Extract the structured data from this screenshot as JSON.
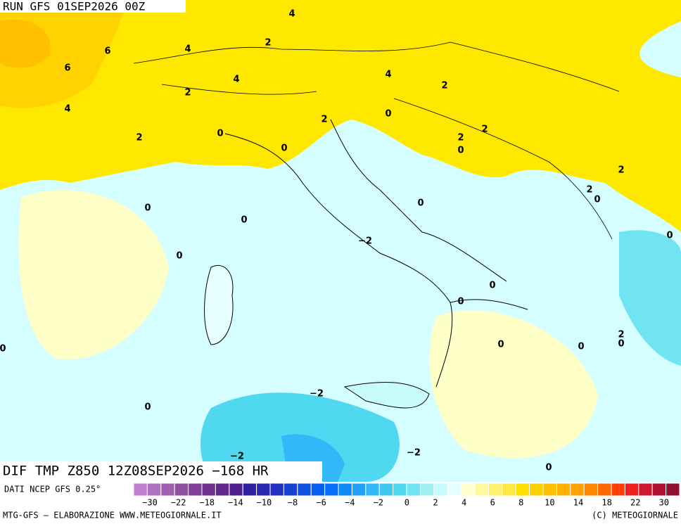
{
  "header": {
    "run": "RUN GFS 01SEP2026 00Z"
  },
  "map": {
    "contour_labels": [
      "4",
      "6",
      "4",
      "2",
      "6",
      "4",
      "4",
      "2",
      "2",
      "4",
      "0",
      "2",
      "0",
      "2",
      "2",
      "2",
      "0",
      "0",
      "2",
      "2",
      "0",
      "0",
      "0",
      "0",
      "0",
      "−2",
      "0",
      "0",
      "0",
      "2",
      "0",
      "0",
      "0",
      "0",
      "−2",
      "0",
      "−2",
      "−2",
      "0"
    ]
  },
  "footer": {
    "title": "DIF TMP Z850 12Z08SEP2026 −168 HR",
    "source": "DATI NCEP GFS 0.25°",
    "credits_left": "MTG-GFS – ELABORAZIONE WWW.METEOGIORNALE.IT",
    "credits_right": "(C) METEOGIORNALE"
  },
  "colorbar": {
    "colors": [
      "#c080d0",
      "#b070c0",
      "#a060b0",
      "#9050a0",
      "#804098",
      "#703090",
      "#602890",
      "#502090",
      "#3020a0",
      "#2828b0",
      "#2030c0",
      "#1840d0",
      "#1050e0",
      "#0860f0",
      "#0870f8",
      "#1088f8",
      "#20a0f8",
      "#30b8f8",
      "#40c8f0",
      "#50d8f0",
      "#70e4f0",
      "#a0f0f0",
      "#c8fcfc",
      "#e8ffff",
      "#ffffd0",
      "#fff8a0",
      "#fff070",
      "#ffe840",
      "#ffe000",
      "#ffd000",
      "#ffc000",
      "#ffb000",
      "#ffa000",
      "#ff8800",
      "#ff6800",
      "#ff4000",
      "#f02020",
      "#d01830",
      "#b01030",
      "#901030"
    ],
    "labels": [
      "−30",
      "−22",
      "−18",
      "−14",
      "−10",
      "−8",
      "−6",
      "−4",
      "−2",
      "0",
      "2",
      "4",
      "6",
      "8",
      "10",
      "14",
      "18",
      "22",
      "30"
    ]
  }
}
